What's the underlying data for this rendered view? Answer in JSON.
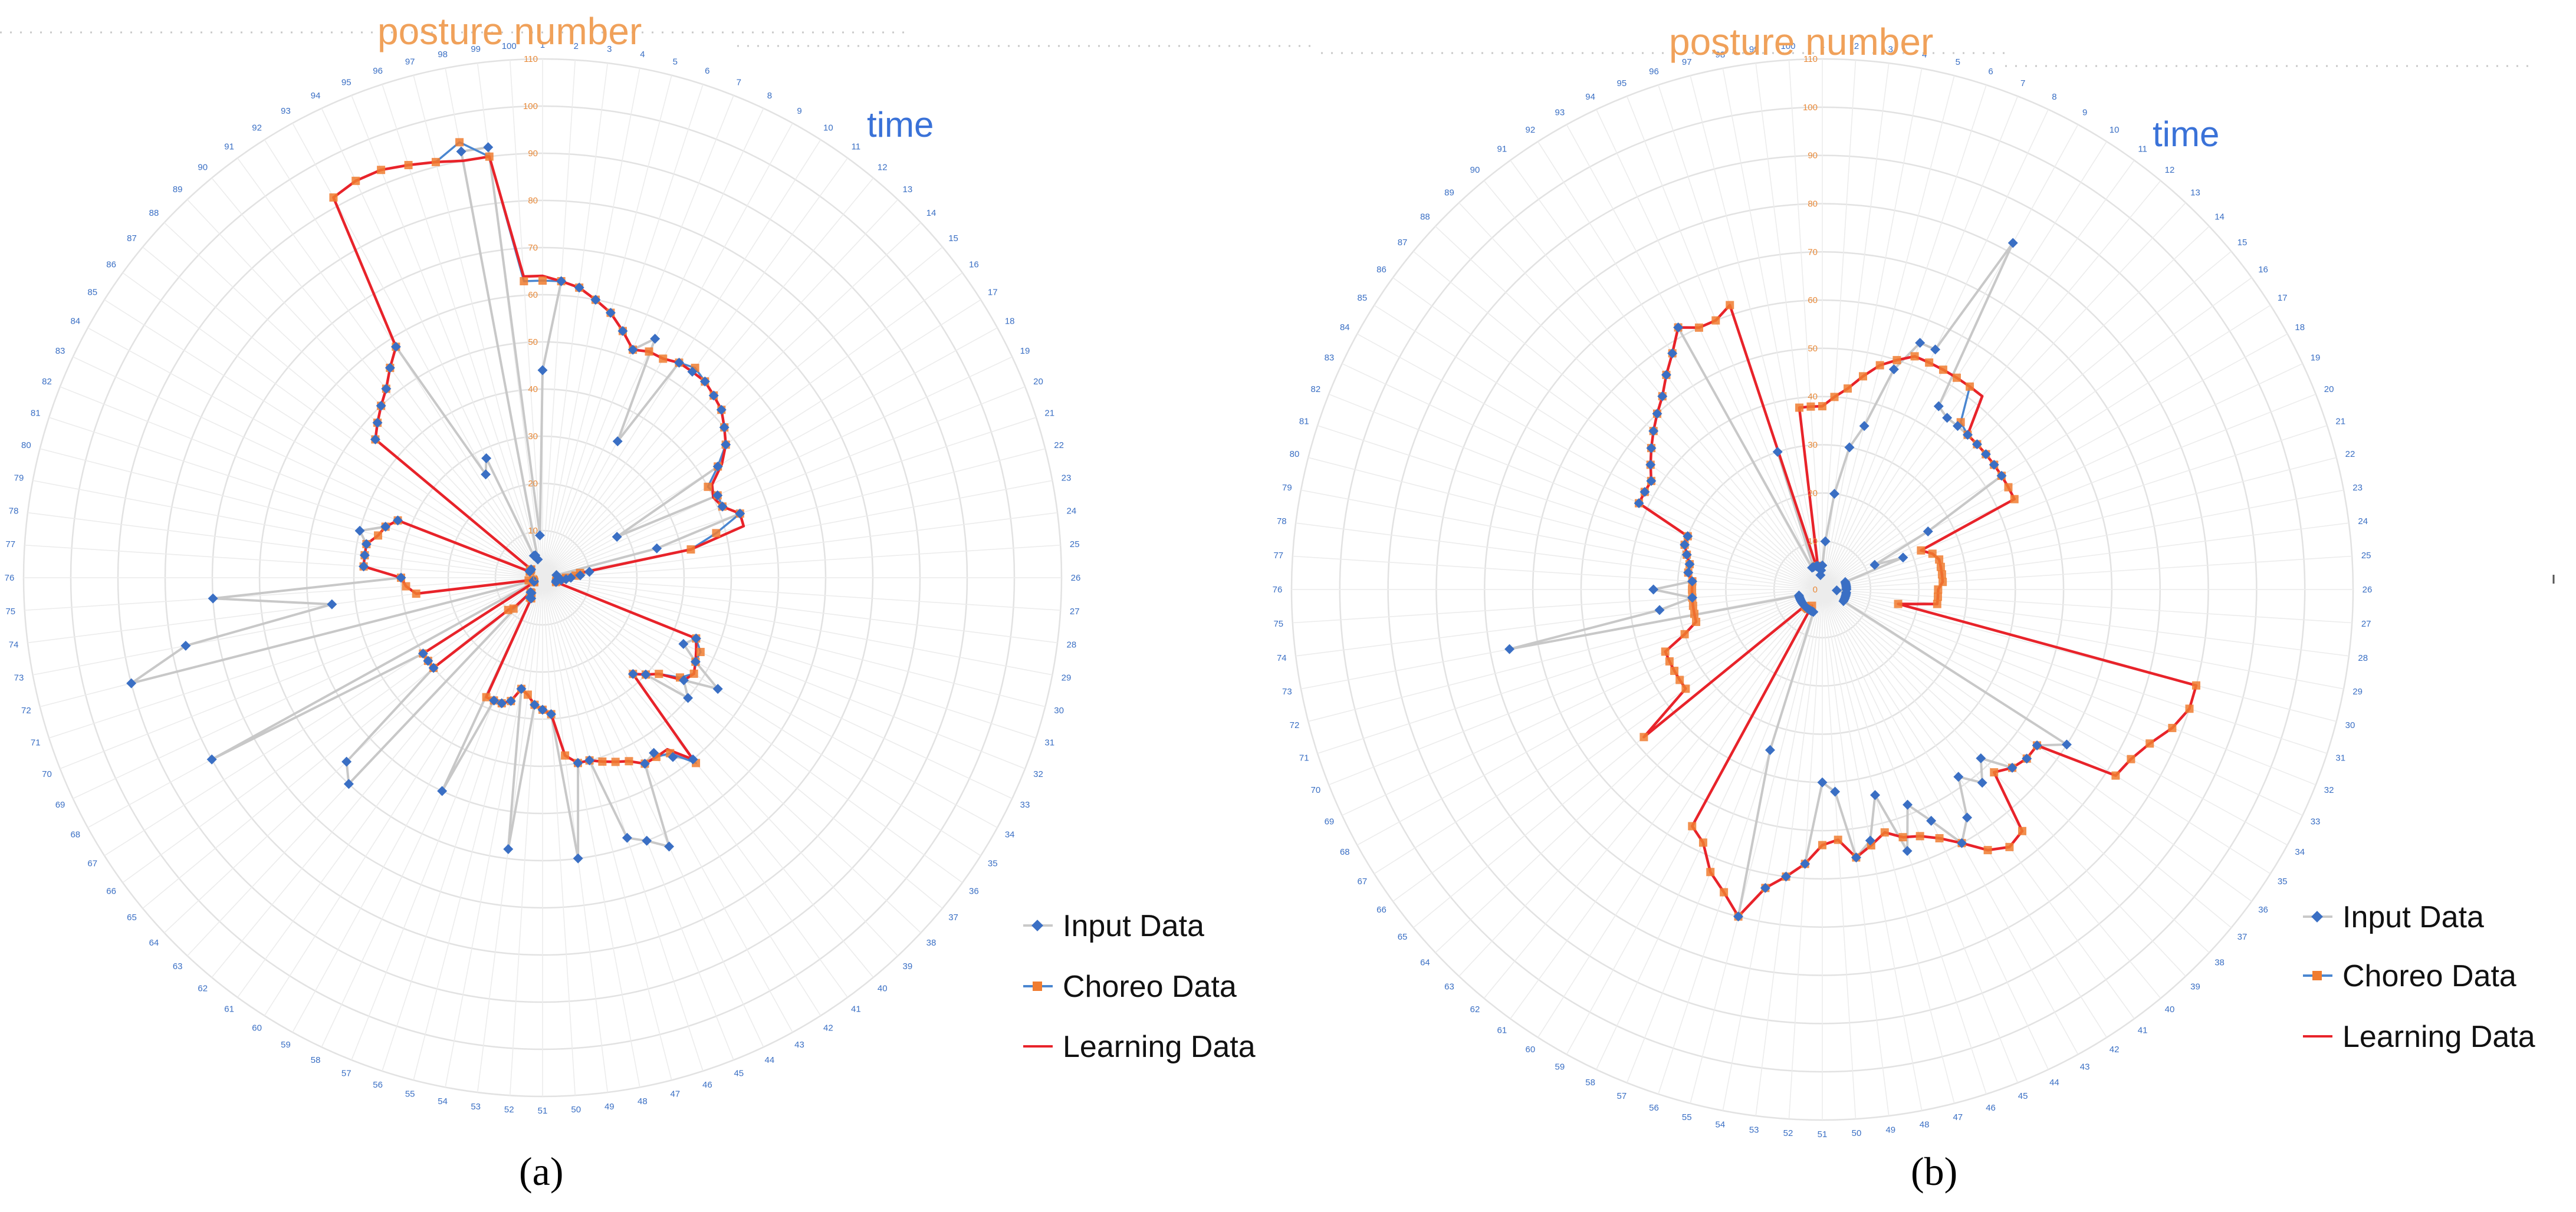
{
  "chart_data": [
    {
      "type": "radar",
      "panel": "a",
      "radial_axis_label": "posture number",
      "angular_axis_label": "time",
      "angular_ticks": "1-100",
      "radial_range": [
        0,
        110
      ],
      "radial_ticks": [
        0,
        10,
        20,
        30,
        40,
        50,
        60,
        70,
        80,
        90,
        100,
        110
      ],
      "legend": [
        "Input Data",
        "Choreo Data",
        "Learning Data"
      ],
      "legend_position": "bottom-right",
      "colors": {
        "input": "#3a6fc4",
        "choreo": "#4a86d0",
        "learning": "#e8232a",
        "marker": "#f07c30"
      },
      "series": [
        {
          "name": "Learning Data",
          "values": [
            64,
            63,
            62,
            60,
            58,
            55,
            52,
            53,
            53,
            54,
            54,
            54,
            53,
            52,
            50,
            48,
            45,
            41,
            40,
            41,
            44,
            44,
            32,
            8,
            7,
            5,
            4,
            3,
            3,
            3,
            3,
            35,
            36,
            37,
            38,
            37,
            32,
            30,
            28,
            50,
            45,
            45,
            45,
            43,
            42,
            41,
            40,
            40,
            38,
            29,
            28,
            27,
            25,
            24,
            27,
            28,
            28,
            28,
            5,
            5,
            4,
            4,
            8,
            10,
            30,
            30,
            30,
            2,
            2,
            2,
            2,
            2,
            3,
            27,
            29,
            30,
            38,
            38,
            38,
            36,
            35,
            33,
            3,
            3,
            3,
            3,
            46,
            48,
            50,
            52,
            55,
            58,
            92,
            93,
            93,
            92,
            91,
            90,
            90,
            64
          ]
        },
        {
          "name": "Choreo Data",
          "values": [
            63,
            63,
            62,
            60,
            58,
            55,
            52,
            53,
            53,
            54,
            55,
            54,
            53,
            52,
            50,
            48,
            44,
            40,
            41,
            41,
            44,
            38,
            32,
            8,
            7,
            5,
            4,
            3,
            3,
            3,
            3,
            35,
            37,
            37,
            38,
            36,
            32,
            30,
            28,
            51,
            46,
            45,
            45,
            43,
            42,
            41,
            40,
            40,
            38,
            29,
            28,
            27,
            25,
            24,
            27,
            28,
            28,
            28,
            5,
            5,
            4,
            4,
            9,
            10,
            30,
            30,
            30,
            2,
            2,
            2,
            2,
            2,
            3,
            27,
            29,
            30,
            38,
            38,
            38,
            36,
            35,
            33,
            3,
            3,
            3,
            3,
            46,
            48,
            50,
            52,
            55,
            58,
            92,
            93,
            93,
            92,
            91,
            94,
            90,
            63
          ]
        },
        {
          "name": "Input Data",
          "values": [
            44,
            63,
            62,
            60,
            58,
            55,
            52,
            56,
            33,
            54,
            54,
            54,
            53,
            52,
            50,
            48,
            44,
            18,
            41,
            41,
            44,
            25,
            3,
            10,
            8,
            6,
            5,
            4,
            3,
            3,
            3,
            35,
            33,
            37,
            44,
            37,
            40,
            30,
            28,
            50,
            47,
            44,
            45,
            63,
            60,
            58,
            40,
            40,
            60,
            29,
            28,
            27,
            58,
            24,
            27,
            28,
            28,
            50,
            5,
            5,
            4,
            4,
            60,
            57,
            30,
            30,
            30,
            80,
            2,
            2,
            2,
            90,
            77,
            45,
            70,
            30,
            38,
            38,
            38,
            40,
            35,
            33,
            3,
            3,
            3,
            3,
            46,
            48,
            50,
            52,
            55,
            58,
            25,
            28,
            5,
            5,
            4,
            92,
            92,
            9
          ]
        }
      ]
    },
    {
      "type": "radar",
      "panel": "b",
      "radial_axis_label": "posture number",
      "angular_axis_label": "time",
      "angular_ticks": "1-100",
      "radial_range": [
        0,
        110
      ],
      "radial_ticks": [
        0,
        10,
        20,
        30,
        40,
        50,
        60,
        70,
        80,
        90,
        100,
        110
      ],
      "legend": [
        "Input Data",
        "Choreo Data",
        "Learning Data"
      ],
      "legend_position": "bottom-right",
      "colors": {
        "input": "#3a6fc4",
        "choreo": "#4a86d0",
        "learning": "#e8232a",
        "marker": "#f07c30"
      },
      "series": [
        {
          "name": "Learning Data",
          "values": [
            38,
            40,
            42,
            45,
            48,
            50,
            52,
            52,
            52,
            52,
            52,
            52,
            44,
            44,
            44,
            44,
            44,
            44,
            44,
            22,
            24,
            25,
            25,
            25,
            25,
            24,
            24,
            24,
            16,
            80,
            80,
            78,
            75,
            73,
            72,
            55,
            55,
            54,
            52,
            65,
            66,
            64,
            60,
            57,
            55,
            54,
            52,
            54,
            56,
            52,
            53,
            57,
            60,
            63,
            70,
            66,
            63,
            58,
            56,
            4,
            5,
            5,
            5,
            5,
            48,
            35,
            35,
            35,
            35,
            35,
            30,
            27,
            27,
            27,
            27,
            27,
            27,
            28,
            28,
            29,
            30,
            30,
            42,
            42,
            42,
            44,
            46,
            48,
            50,
            52,
            55,
            58,
            62,
            60,
            60,
            62,
            5,
            5,
            38,
            38
          ]
        },
        {
          "name": "Choreo Data",
          "values": [
            38,
            40,
            42,
            45,
            48,
            50,
            52,
            52,
            52,
            52,
            52,
            45,
            44,
            44,
            44,
            44,
            44,
            44,
            44,
            22,
            24,
            25,
            25,
            25,
            25,
            24,
            24,
            24,
            16,
            80,
            80,
            78,
            75,
            73,
            72,
            55,
            55,
            54,
            52,
            65,
            66,
            64,
            60,
            57,
            55,
            54,
            52,
            54,
            56,
            52,
            53,
            57,
            60,
            63,
            70,
            66,
            63,
            58,
            56,
            4,
            5,
            5,
            5,
            5,
            48,
            35,
            35,
            35,
            35,
            35,
            30,
            27,
            27,
            27,
            27,
            27,
            27,
            28,
            28,
            29,
            30,
            30,
            42,
            42,
            42,
            44,
            46,
            48,
            50,
            52,
            55,
            58,
            62,
            60,
            60,
            62,
            5,
            5,
            38,
            38
          ]
        },
        {
          "name": "Input Data",
          "values": [
            5,
            10,
            20,
            30,
            35,
            48,
            55,
            55,
            82,
            45,
            44,
            44,
            44,
            44,
            44,
            44,
            44,
            25,
            12,
            18,
            5,
            5,
            5,
            5,
            5,
            5,
            3,
            5,
            5,
            5,
            5,
            5,
            5,
            5,
            60,
            55,
            55,
            54,
            48,
            52,
            48,
            56,
            60,
            53,
            48,
            57,
            44,
            53,
            56,
            42,
            40,
            57,
            60,
            63,
            70,
            35,
            5,
            5,
            5,
            5,
            5,
            5,
            5,
            5,
            5,
            5,
            5,
            5,
            5,
            5,
            5,
            5,
            66,
            34,
            27,
            35,
            27,
            28,
            28,
            29,
            30,
            30,
            42,
            42,
            42,
            44,
            46,
            48,
            50,
            52,
            55,
            58,
            62,
            5,
            5,
            30,
            5,
            5,
            3,
            4
          ]
        }
      ]
    }
  ],
  "panels": [
    {
      "radial_title": "posture number",
      "angular_title": "time",
      "legend": {
        "input": "Input Data",
        "choreo": "Choreo Data",
        "learning": "Learning Data"
      },
      "caption": "(a)"
    },
    {
      "radial_title": "posture number",
      "angular_title": "time",
      "legend": {
        "input": "Input Data",
        "choreo": "Choreo Data",
        "learning": "Learning Data"
      },
      "caption": "(b)"
    }
  ]
}
